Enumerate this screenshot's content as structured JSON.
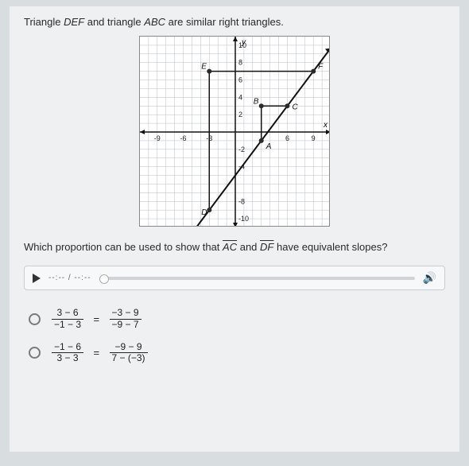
{
  "prompt_pre": "Triangle ",
  "prompt_tri1": "DEF",
  "prompt_mid": " and triangle ",
  "prompt_tri2": "ABC",
  "prompt_post": " are similar right triangles.",
  "question_pre": "Which proportion can be used to show that ",
  "seg1": "AC",
  "question_mid": " and ",
  "seg2": "DF",
  "question_post": " have equivalent slopes?",
  "audio_time": "--:-- / --:--",
  "graph": {
    "size": 240,
    "min": -11,
    "max": 11,
    "x_ticks": [
      -9,
      -6,
      -3,
      6,
      9
    ],
    "y_ticks": [
      10,
      8,
      6,
      4,
      2,
      -2,
      -4,
      -8,
      -10
    ],
    "axis_label_x": "x",
    "axis_label_y": "y",
    "points": {
      "A": {
        "x": 3,
        "y": -1,
        "label": "A"
      },
      "B": {
        "x": 3,
        "y": 3,
        "label": "B"
      },
      "C": {
        "x": 6,
        "y": 3,
        "label": "C"
      },
      "D": {
        "x": -3,
        "y": -9,
        "label": "D"
      },
      "E": {
        "x": -3,
        "y": 7,
        "label": "E"
      },
      "F": {
        "x": 9,
        "y": 7,
        "label": "F"
      }
    },
    "line_color": "#111",
    "grid_color": "#b8bdc2",
    "axis_color": "#111",
    "point_color": "#2a2a2a",
    "tri_color": "#111"
  },
  "answers": [
    {
      "l_num": "3 − 6",
      "l_den": "−1 − 3",
      "r_num": "−3 − 9",
      "r_den": "−9 − 7"
    },
    {
      "l_num": "−1 − 6",
      "l_den": "3 − 3",
      "r_num": "−9 − 9",
      "r_den": "7 − (−3)"
    }
  ],
  "eq_sign": "="
}
